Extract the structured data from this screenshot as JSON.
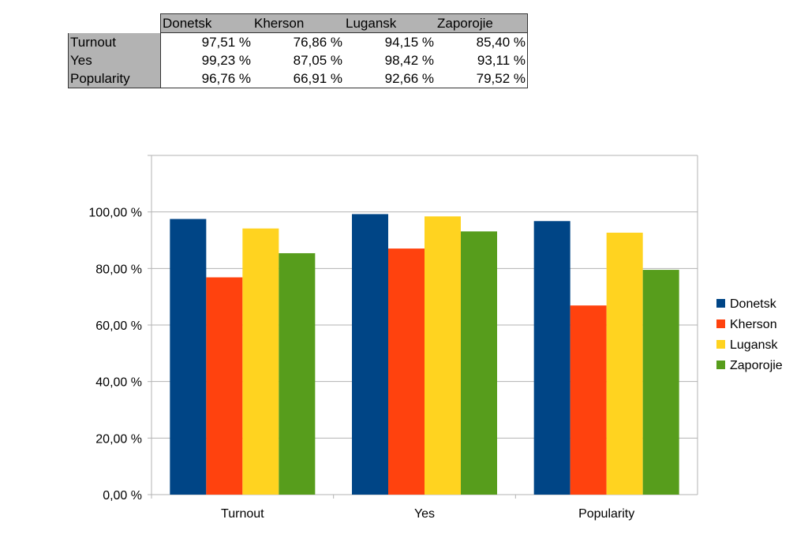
{
  "table": {
    "columns": [
      "Donetsk",
      "Kherson",
      "Lugansk",
      "Zaporojie"
    ],
    "rows": [
      {
        "label": "Turnout",
        "values": [
          "97,51 %",
          "76,86 %",
          "94,15 %",
          "85,40 %"
        ]
      },
      {
        "label": "Yes",
        "values": [
          "99,23 %",
          "87,05 %",
          "98,42 %",
          "93,11 %"
        ]
      },
      {
        "label": "Popularity",
        "values": [
          "96,76 %",
          "66,91 %",
          "92,66 %",
          "79,52 %"
        ]
      }
    ]
  },
  "chart_data": {
    "type": "bar",
    "title": "",
    "xlabel": "",
    "ylabel": "",
    "categories": [
      "Turnout",
      "Yes",
      "Popularity"
    ],
    "series": [
      {
        "name": "Donetsk",
        "color": "#004586",
        "values": [
          97.51,
          99.23,
          96.76
        ]
      },
      {
        "name": "Kherson",
        "color": "#ff420e",
        "values": [
          76.86,
          87.05,
          66.91
        ]
      },
      {
        "name": "Lugansk",
        "color": "#ffd320",
        "values": [
          94.15,
          98.42,
          92.66
        ]
      },
      {
        "name": "Zaporojie",
        "color": "#579d1c",
        "values": [
          85.4,
          93.11,
          79.52
        ]
      }
    ],
    "ylim": [
      0,
      120
    ],
    "yticks": [
      "0,00 %",
      "20,00 %",
      "40,00 %",
      "60,00 %",
      "80,00 %",
      "100,00 %"
    ],
    "grid": true,
    "legend": "right"
  }
}
